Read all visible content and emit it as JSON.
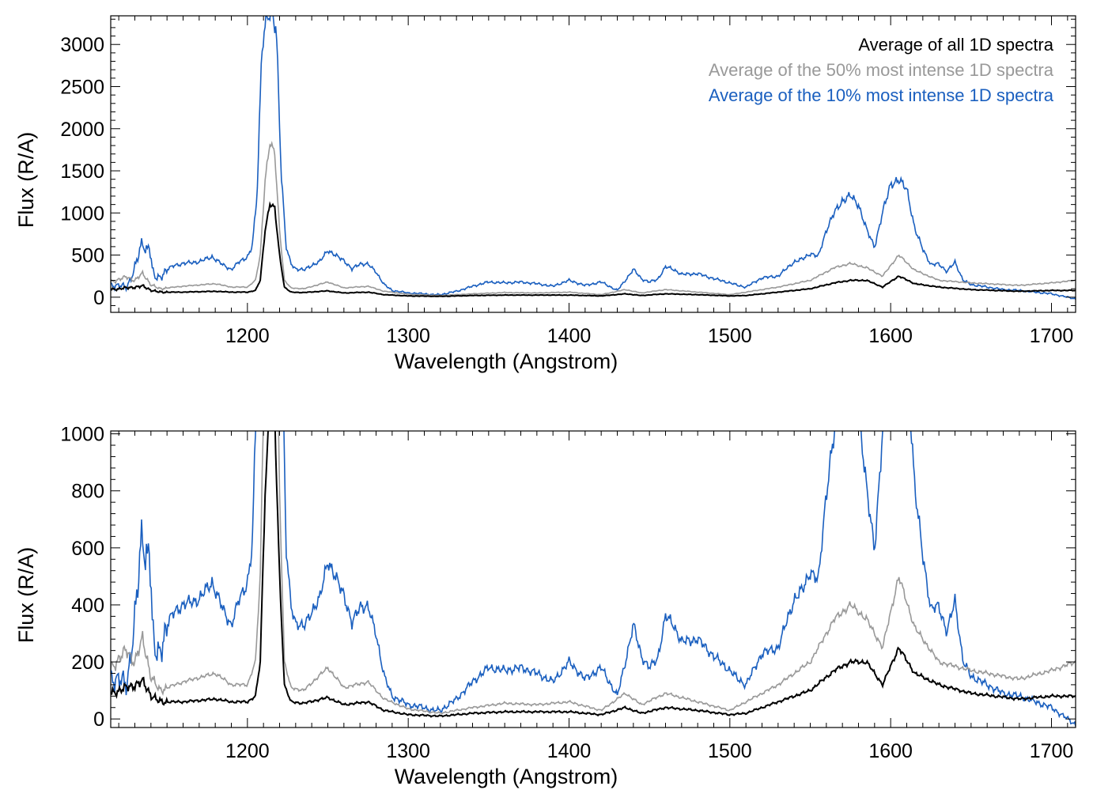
{
  "chart_data": [
    {
      "type": "line",
      "panel": "top",
      "title": "",
      "xlabel": "Wavelength (Angstrom)",
      "ylabel": "Flux (R/A)",
      "xlim": [
        1115,
        1715
      ],
      "ylim": [
        -180,
        3340
      ],
      "xticks": [
        1200,
        1300,
        1400,
        1500,
        1600,
        1700
      ],
      "xtick_labels": [
        "1200",
        "1300",
        "1400",
        "1500",
        "1600",
        "1700"
      ],
      "yticks": [
        0,
        500,
        1000,
        1500,
        2000,
        2500,
        3000
      ],
      "ytick_labels": [
        "0",
        "500",
        "1000",
        "1500",
        "2000",
        "2500",
        "3000"
      ],
      "legend_position": "top-right",
      "series": [
        {
          "name": "Average of all 1D spectra",
          "color": "#000000",
          "x": [
            1115,
            1125,
            1130,
            1135,
            1140,
            1145,
            1160,
            1180,
            1190,
            1200,
            1205,
            1208,
            1211,
            1214,
            1217,
            1220,
            1223,
            1227,
            1235,
            1250,
            1260,
            1275,
            1285,
            1300,
            1320,
            1340,
            1360,
            1380,
            1400,
            1420,
            1435,
            1445,
            1460,
            1480,
            1500,
            1510,
            1530,
            1550,
            1565,
            1575,
            1585,
            1595,
            1605,
            1615,
            1630,
            1650,
            1680,
            1700,
            1715
          ],
          "values": [
            90,
            110,
            120,
            130,
            85,
            60,
            60,
            70,
            60,
            60,
            80,
            200,
            800,
            1110,
            1050,
            500,
            120,
            60,
            55,
            75,
            50,
            60,
            30,
            15,
            10,
            20,
            25,
            25,
            25,
            15,
            40,
            20,
            40,
            30,
            15,
            20,
            60,
            100,
            170,
            200,
            200,
            120,
            250,
            160,
            120,
            90,
            70,
            80,
            80
          ]
        },
        {
          "name": "Average of the 50% most intense 1D spectra",
          "color": "#999999",
          "x": [
            1115,
            1125,
            1130,
            1135,
            1140,
            1145,
            1160,
            1180,
            1190,
            1200,
            1205,
            1208,
            1211,
            1214,
            1217,
            1220,
            1223,
            1227,
            1235,
            1250,
            1260,
            1275,
            1285,
            1300,
            1320,
            1340,
            1360,
            1380,
            1400,
            1420,
            1435,
            1445,
            1460,
            1480,
            1500,
            1510,
            1530,
            1550,
            1565,
            1575,
            1585,
            1595,
            1605,
            1615,
            1630,
            1650,
            1680,
            1700,
            1715
          ],
          "values": [
            180,
            240,
            200,
            280,
            150,
            100,
            130,
            160,
            120,
            120,
            200,
            500,
            1400,
            1830,
            1700,
            800,
            200,
            110,
            100,
            180,
            110,
            130,
            70,
            35,
            20,
            40,
            55,
            50,
            60,
            30,
            90,
            50,
            90,
            60,
            30,
            60,
            120,
            200,
            350,
            400,
            350,
            250,
            500,
            320,
            200,
            170,
            140,
            170,
            200
          ]
        },
        {
          "name": "Average of the 10% most intense 1D spectra",
          "color": "#1a5fbf",
          "x": [
            1115,
            1125,
            1130,
            1135,
            1137,
            1139,
            1141,
            1143,
            1145,
            1150,
            1155,
            1160,
            1170,
            1178,
            1185,
            1190,
            1195,
            1200,
            1203,
            1206,
            1209,
            1212,
            1215,
            1218,
            1221,
            1224,
            1227,
            1230,
            1235,
            1240,
            1245,
            1250,
            1255,
            1260,
            1265,
            1270,
            1275,
            1280,
            1285,
            1290,
            1300,
            1310,
            1315,
            1320,
            1330,
            1340,
            1350,
            1360,
            1370,
            1380,
            1390,
            1400,
            1410,
            1420,
            1430,
            1435,
            1440,
            1445,
            1450,
            1455,
            1460,
            1465,
            1470,
            1480,
            1490,
            1500,
            1505,
            1510,
            1520,
            1530,
            1540,
            1545,
            1550,
            1555,
            1560,
            1565,
            1570,
            1575,
            1580,
            1585,
            1590,
            1595,
            1600,
            1605,
            1610,
            1615,
            1620,
            1625,
            1630,
            1635,
            1640,
            1645,
            1650,
            1660,
            1670,
            1680,
            1690,
            1700,
            1705,
            1710,
            1715
          ],
          "values": [
            150,
            120,
            350,
            660,
            550,
            640,
            300,
            220,
            230,
            330,
            380,
            400,
            420,
            480,
            380,
            330,
            420,
            480,
            600,
            1200,
            3000,
            3330,
            3330,
            3200,
            1500,
            600,
            400,
            340,
            320,
            380,
            420,
            560,
            490,
            440,
            330,
            400,
            390,
            300,
            150,
            80,
            50,
            40,
            30,
            30,
            70,
            130,
            180,
            170,
            180,
            160,
            130,
            200,
            140,
            180,
            80,
            200,
            330,
            220,
            180,
            210,
            360,
            330,
            270,
            280,
            220,
            170,
            140,
            120,
            230,
            250,
            420,
            450,
            520,
            480,
            800,
            1000,
            1150,
            1200,
            1100,
            800,
            600,
            1000,
            1350,
            1380,
            1300,
            800,
            580,
            380,
            400,
            300,
            420,
            200,
            150,
            120,
            90,
            80,
            60,
            40,
            20,
            0,
            -20
          ]
        }
      ]
    },
    {
      "type": "line",
      "panel": "bottom",
      "title": "",
      "xlabel": "Wavelength (Angstrom)",
      "ylabel": "Flux (R/A)",
      "xlim": [
        1115,
        1715
      ],
      "ylim": [
        -30,
        1010
      ],
      "xticks": [
        1200,
        1300,
        1400,
        1500,
        1600,
        1700
      ],
      "xtick_labels": [
        "1200",
        "1300",
        "1400",
        "1500",
        "1600",
        "1700"
      ],
      "yticks": [
        0,
        200,
        400,
        600,
        800,
        1000
      ],
      "ytick_labels": [
        "0",
        "200",
        "400",
        "600",
        "800",
        "1000"
      ],
      "series_note": "same three series as the top panel, shown zoomed (clipped at the top of the axes)"
    }
  ],
  "legend": [
    {
      "label": "Average of all 1D spectra",
      "color": "#000000"
    },
    {
      "label": "Average of the 50% most intense 1D spectra",
      "color": "#999999"
    },
    {
      "label": "Average of the 10% most intense 1D spectra",
      "color": "#1a5fbf"
    }
  ]
}
